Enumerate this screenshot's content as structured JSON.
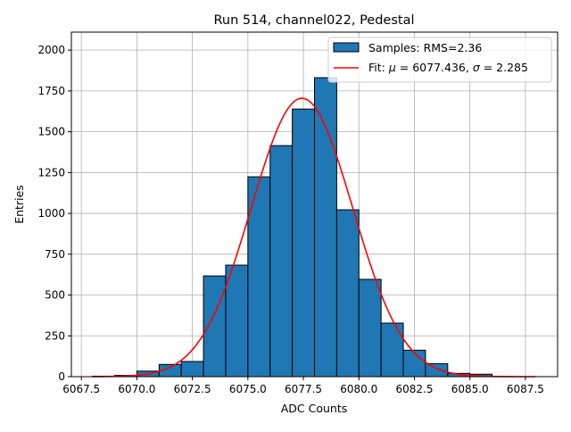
{
  "chart_data": {
    "type": "bar",
    "title": "Run 514, channel022, Pedestal",
    "xlabel": "ADC Counts",
    "ylabel": "Entries",
    "xlim": [
      6067.05,
      6088.95
    ],
    "ylim": [
      0,
      2110
    ],
    "grid": true,
    "legend_placement": "top-right",
    "xticks": [
      6067.5,
      6070.0,
      6072.5,
      6075.0,
      6077.5,
      6080.0,
      6082.5,
      6085.0,
      6087.5
    ],
    "xtick_labels": [
      "6067.5",
      "6070.0",
      "6072.5",
      "6075.0",
      "6077.5",
      "6080.0",
      "6082.5",
      "6085.0",
      "6087.5"
    ],
    "yticks": [
      0,
      250,
      500,
      750,
      1000,
      1250,
      1500,
      1750,
      2000
    ],
    "ytick_labels": [
      "0",
      "250",
      "500",
      "750",
      "1000",
      "1250",
      "1500",
      "1750",
      "2000"
    ],
    "histogram": {
      "name": "Samples: RMS=2.36",
      "color": "#1f77b4",
      "bin_edges": [
        6068,
        6069,
        6070,
        6071,
        6072,
        6073,
        6074,
        6075,
        6076,
        6077,
        6078,
        6079,
        6080,
        6081,
        6082,
        6083,
        6084,
        6085,
        6086
      ],
      "values": [
        3,
        8,
        34,
        75,
        93,
        617,
        683,
        1224,
        1415,
        1639,
        1831,
        1022,
        596,
        328,
        162,
        80,
        20,
        15
      ]
    },
    "fit": {
      "name_prefix": "Fit: ",
      "mu_label": "μ",
      "mu_text": " = 6077.436, ",
      "sigma_label": "σ",
      "sigma_text": " = 2.285",
      "color": "#ff0000",
      "mu": 6077.436,
      "sigma": 2.285,
      "amplitude": 1705,
      "x_range": [
        6068,
        6088
      ]
    }
  }
}
